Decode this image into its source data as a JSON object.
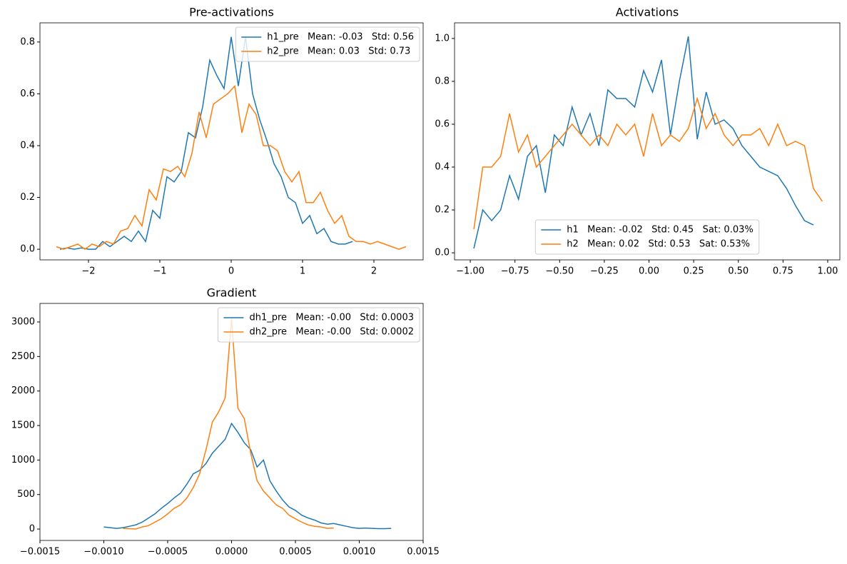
{
  "chart_data": [
    {
      "type": "line",
      "title": "Pre-activations",
      "legend": "upper right",
      "xlim": [
        -2.68,
        2.69
      ],
      "ylim": [
        -0.041,
        0.874
      ],
      "xticks": [
        {
          "value": -2,
          "label": "−2"
        },
        {
          "value": -1,
          "label": "−1"
        },
        0,
        1,
        2
      ],
      "yticks": [
        {
          "value": 0,
          "label": "0.0"
        },
        0.2,
        0.4,
        0.6,
        0.8
      ],
      "series": [
        {
          "name": "h1_pre   Mean: -0.03   Std: 0.56",
          "color": "#1f77b4",
          "x": [
            -2.4,
            -2.3,
            -2.2,
            -2.1,
            -2.0,
            -1.9,
            -1.8,
            -1.7,
            -1.6,
            -1.5,
            -1.4,
            -1.3,
            -1.2,
            -1.1,
            -1.0,
            -0.9,
            -0.8,
            -0.7,
            -0.6,
            -0.5,
            -0.4,
            -0.3,
            -0.2,
            -0.1,
            0.0,
            0.1,
            0.2,
            0.3,
            0.4,
            0.5,
            0.6,
            0.7,
            0.8,
            0.9,
            1.0,
            1.1,
            1.2,
            1.3,
            1.4,
            1.5,
            1.6,
            1.7
          ],
          "values": [
            0,
            0.005,
            0,
            0.005,
            0,
            0,
            0.03,
            0.01,
            0.03,
            0.05,
            0.03,
            0.07,
            0.03,
            0.15,
            0.12,
            0.28,
            0.26,
            0.3,
            0.45,
            0.43,
            0.55,
            0.73,
            0.67,
            0.62,
            0.82,
            0.63,
            0.82,
            0.6,
            0.5,
            0.42,
            0.33,
            0.28,
            0.2,
            0.18,
            0.1,
            0.13,
            0.06,
            0.08,
            0.03,
            0.02,
            0.02,
            0.03
          ]
        },
        {
          "name": "h2_pre   Mean: 0.03   Std: 0.73",
          "color": "#ff7f0e",
          "x": [
            -2.45,
            -2.35,
            -2.25,
            -2.15,
            -2.05,
            -1.95,
            -1.85,
            -1.75,
            -1.65,
            -1.55,
            -1.45,
            -1.35,
            -1.25,
            -1.15,
            -1.05,
            -0.95,
            -0.85,
            -0.75,
            -0.65,
            -0.55,
            -0.45,
            -0.35,
            -0.25,
            -0.15,
            -0.05,
            0.05,
            0.15,
            0.25,
            0.35,
            0.45,
            0.55,
            0.65,
            0.75,
            0.85,
            0.95,
            1.05,
            1.15,
            1.25,
            1.35,
            1.45,
            1.55,
            1.65,
            1.75,
            1.85,
            1.95,
            2.05,
            2.15,
            2.25,
            2.35,
            2.45
          ],
          "values": [
            0.01,
            0,
            0.01,
            0.02,
            0,
            0.02,
            0.01,
            0.03,
            0.02,
            0.07,
            0.08,
            0.13,
            0.09,
            0.23,
            0.19,
            0.31,
            0.3,
            0.32,
            0.28,
            0.37,
            0.53,
            0.43,
            0.56,
            0.58,
            0.6,
            0.63,
            0.45,
            0.56,
            0.52,
            0.4,
            0.4,
            0.38,
            0.3,
            0.26,
            0.3,
            0.18,
            0.18,
            0.22,
            0.15,
            0.1,
            0.13,
            0.05,
            0.03,
            0.03,
            0.02,
            0.03,
            0.02,
            0.01,
            0,
            0.01
          ]
        }
      ]
    },
    {
      "type": "line",
      "title": "Activations",
      "legend": "lower center",
      "xlim": [
        -1.088,
        1.068
      ],
      "ylim": [
        -0.033,
        1.073
      ],
      "xticks": [
        {
          "value": -1,
          "label": "−1.00"
        },
        {
          "value": -0.75,
          "label": "−0.75"
        },
        {
          "value": -0.5,
          "label": "−0.50"
        },
        {
          "value": -0.25,
          "label": "−0.25"
        },
        {
          "value": 0,
          "label": "0.00"
        },
        {
          "value": 0.25,
          "label": "0.25"
        },
        {
          "value": 0.5,
          "label": "0.50"
        },
        {
          "value": 0.75,
          "label": "0.75"
        },
        {
          "value": 1,
          "label": "1.00"
        }
      ],
      "yticks": [
        {
          "value": 0,
          "label": "0.0"
        },
        0.2,
        0.4,
        0.6,
        0.8,
        {
          "value": 1,
          "label": "1.0"
        }
      ],
      "series": [
        {
          "name": "h1   Mean: -0.02   Std: 0.45   Sat: 0.03%",
          "color": "#1f77b4",
          "x": [
            -0.98,
            -0.93,
            -0.88,
            -0.83,
            -0.78,
            -0.73,
            -0.68,
            -0.63,
            -0.58,
            -0.53,
            -0.48,
            -0.43,
            -0.38,
            -0.33,
            -0.28,
            -0.23,
            -0.18,
            -0.13,
            -0.08,
            -0.03,
            0.02,
            0.07,
            0.12,
            0.17,
            0.22,
            0.27,
            0.32,
            0.37,
            0.42,
            0.47,
            0.52,
            0.57,
            0.62,
            0.67,
            0.72,
            0.77,
            0.82,
            0.87,
            0.92
          ],
          "values": [
            0.02,
            0.2,
            0.15,
            0.2,
            0.36,
            0.25,
            0.45,
            0.5,
            0.28,
            0.55,
            0.5,
            0.68,
            0.55,
            0.65,
            0.5,
            0.76,
            0.72,
            0.72,
            0.68,
            0.85,
            0.75,
            0.9,
            0.55,
            0.8,
            1.01,
            0.53,
            0.75,
            0.6,
            0.62,
            0.58,
            0.5,
            0.45,
            0.4,
            0.38,
            0.36,
            0.3,
            0.22,
            0.15,
            0.13
          ]
        },
        {
          "name": "h2   Mean: 0.02   Std: 0.53   Sat: 0.53%",
          "color": "#ff7f0e",
          "x": [
            -0.98,
            -0.93,
            -0.88,
            -0.83,
            -0.78,
            -0.73,
            -0.68,
            -0.63,
            -0.58,
            -0.53,
            -0.48,
            -0.43,
            -0.38,
            -0.33,
            -0.28,
            -0.23,
            -0.18,
            -0.13,
            -0.08,
            -0.03,
            0.02,
            0.07,
            0.12,
            0.17,
            0.22,
            0.27,
            0.32,
            0.37,
            0.42,
            0.47,
            0.52,
            0.57,
            0.62,
            0.67,
            0.72,
            0.77,
            0.82,
            0.87,
            0.92,
            0.97
          ],
          "values": [
            0.11,
            0.4,
            0.4,
            0.45,
            0.65,
            0.47,
            0.55,
            0.4,
            0.45,
            0.5,
            0.55,
            0.6,
            0.55,
            0.5,
            0.55,
            0.5,
            0.6,
            0.55,
            0.6,
            0.45,
            0.65,
            0.5,
            0.55,
            0.52,
            0.58,
            0.72,
            0.58,
            0.65,
            0.55,
            0.5,
            0.55,
            0.55,
            0.58,
            0.5,
            0.6,
            0.5,
            0.52,
            0.5,
            0.3,
            0.24
          ]
        }
      ]
    },
    {
      "type": "line",
      "title": "Gradient",
      "legend": "upper right",
      "xlim": [
        -0.0015,
        0.0015
      ],
      "ylim": [
        -165,
        3269
      ],
      "xticks": [
        {
          "value": -0.0015,
          "label": "−0.0015"
        },
        {
          "value": -0.001,
          "label": "−0.0010"
        },
        {
          "value": -0.0005,
          "label": "−0.0005"
        },
        {
          "value": 0,
          "label": "0.0000"
        },
        {
          "value": 0.0005,
          "label": "0.0005"
        },
        {
          "value": 0.001,
          "label": "0.0010"
        },
        {
          "value": 0.0015,
          "label": "0.0015"
        }
      ],
      "yticks": [
        0,
        500,
        1000,
        1500,
        2000,
        2500,
        3000
      ],
      "series": [
        {
          "name": "dh1_pre   Mean: -0.00   Std: 0.0003",
          "color": "#1f77b4",
          "x": [
            -0.001,
            -0.00095,
            -0.0009,
            -0.00085,
            -0.0008,
            -0.00075,
            -0.0007,
            -0.00065,
            -0.0006,
            -0.00055,
            -0.0005,
            -0.00045,
            -0.0004,
            -0.00035,
            -0.0003,
            -0.00025,
            -0.0002,
            -0.00015,
            -0.0001,
            -5e-05,
            0,
            5e-05,
            0.0001,
            0.00015,
            0.0002,
            0.00025,
            0.0003,
            0.00035,
            0.0004,
            0.00045,
            0.0005,
            0.00055,
            0.0006,
            0.00065,
            0.0007,
            0.00075,
            0.0008,
            0.00085,
            0.0009,
            0.00095,
            0.001,
            0.00105,
            0.0011,
            0.00115,
            0.0012,
            0.00125
          ],
          "values": [
            30,
            20,
            10,
            20,
            40,
            60,
            100,
            160,
            220,
            300,
            370,
            450,
            520,
            650,
            800,
            850,
            950,
            1100,
            1200,
            1300,
            1530,
            1400,
            1250,
            1150,
            900,
            1000,
            700,
            550,
            420,
            320,
            270,
            200,
            160,
            130,
            90,
            70,
            80,
            60,
            40,
            20,
            10,
            15,
            10,
            5,
            5,
            10
          ]
        },
        {
          "name": "dh2_pre   Mean: -0.00   Std: 0.0002",
          "color": "#ff7f0e",
          "x": [
            -0.00085,
            -0.0008,
            -0.00075,
            -0.0007,
            -0.00065,
            -0.0006,
            -0.00055,
            -0.0005,
            -0.00045,
            -0.0004,
            -0.00035,
            -0.0003,
            -0.00025,
            -0.0002,
            -0.00015,
            -0.0001,
            -5e-05,
            0,
            5e-05,
            0.0001,
            0.00015,
            0.0002,
            0.00025,
            0.0003,
            0.00035,
            0.0004,
            0.00045,
            0.0005,
            0.00055,
            0.0006,
            0.00065,
            0.0007,
            0.00075,
            0.0008
          ],
          "values": [
            10,
            5,
            0,
            30,
            50,
            100,
            150,
            220,
            300,
            350,
            450,
            600,
            800,
            1150,
            1550,
            1700,
            1900,
            3050,
            1750,
            1600,
            1100,
            700,
            550,
            450,
            350,
            300,
            200,
            150,
            100,
            60,
            40,
            30,
            10,
            15
          ]
        }
      ]
    }
  ]
}
